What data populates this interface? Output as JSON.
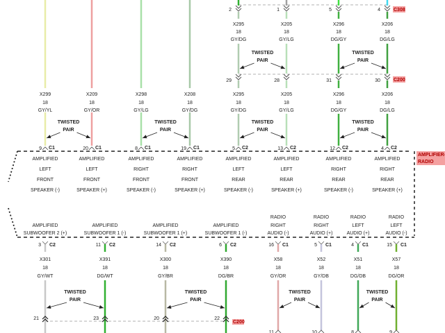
{
  "twisted_pair": [
    "TWISTED",
    "PAIR"
  ],
  "module_label": [
    "AMPLIFIER-",
    "RADIO"
  ],
  "module_label_bg": "#f4a0a0",
  "top_left": {
    "wires": [
      {
        "circuit": "X299",
        "gauge": "18",
        "color_code": "GY/YL",
        "pin": "9",
        "connector": "C1",
        "function": [
          "AMPLIFIED",
          "LEFT",
          "FRONT",
          "SPEAKER (-)"
        ],
        "color": "#e8eca8"
      },
      {
        "circuit": "X209",
        "gauge": "18",
        "color_code": "GY/OR",
        "pin": "20",
        "connector": "C1",
        "function": [
          "AMPLIFIED",
          "LEFT",
          "FRONT",
          "SPEAKER (+)"
        ],
        "color": "#eea0a0"
      },
      {
        "circuit": "X298",
        "gauge": "18",
        "color_code": "GY/LG",
        "pin": "8",
        "connector": "C1",
        "function": [
          "AMPLIFIED",
          "RIGHT",
          "FRONT",
          "SPEAKER (-)"
        ],
        "color": "#a8e0a8"
      },
      {
        "circuit": "X208",
        "gauge": "18",
        "color_code": "GY/DG",
        "pin": "19",
        "connector": "C1",
        "function": [
          "AMPLIFIED",
          "RIGHT",
          "FRONT",
          "SPEAKER (+)"
        ],
        "color": "#a8c8a8"
      }
    ]
  },
  "top_right": {
    "connector_top": "C308",
    "connector_mid": "C200",
    "wires": [
      {
        "pin_top": "2",
        "pin_mid": "29",
        "circuit": "X295",
        "gauge": "18",
        "color_code": "GY/DG",
        "pin": "5",
        "connector": "C2",
        "function": [
          "AMPLIFIED",
          "LEFT",
          "REAR",
          "SPEAKER (-)"
        ],
        "color": "#b0ccb0",
        "top_color": "#30b030"
      },
      {
        "pin_top": "1",
        "pin_mid": "28",
        "circuit": "X205",
        "gauge": "18",
        "color_code": "GY/LG",
        "pin": "13",
        "connector": "C2",
        "function": [
          "AMPLIFIED",
          "LEFT",
          "REAR",
          "SPEAKER (+)"
        ],
        "color": "#b8e0b8",
        "top_color": "#a0a0a0"
      },
      {
        "pin_top": "5",
        "pin_mid": "31",
        "circuit": "X296",
        "gauge": "18",
        "color_code": "DG/GY",
        "pin": "12",
        "connector": "C2",
        "function": [
          "AMPLIFIED",
          "RIGHT",
          "REAR",
          "SPEAKER (-)"
        ],
        "color": "#40b040",
        "top_color": "#40e040"
      },
      {
        "pin_top": "4",
        "pin_mid": "30",
        "circuit": "X206",
        "gauge": "18",
        "color_code": "DG/LG",
        "pin": "4",
        "connector": "C2",
        "function": [
          "AMPLIFIED",
          "RIGHT",
          "REAR",
          "SPEAKER (+)"
        ],
        "color": "#40a040",
        "top_color": "#40d8f0"
      }
    ]
  },
  "bottom_left": {
    "connector": "C200",
    "wires": [
      {
        "function": [
          "AMPLIFIED",
          "SUBWOOFER 2 (+)"
        ],
        "pin": "3",
        "connector": "C2",
        "circuit": "X301",
        "gauge": "18",
        "color_code": "GY/WT",
        "pin_bottom": "21",
        "color": "#c8c8c8"
      },
      {
        "function": [
          "AMPLIFIED",
          "SUBWOOFER 1 (-)"
        ],
        "pin": "11",
        "connector": "C2",
        "circuit": "X391",
        "gauge": "18",
        "color_code": "DG/WT",
        "pin_bottom": "23",
        "color": "#30b030"
      },
      {
        "function": [
          "AMPLIFIED",
          "SUBWOOFER 1 (+)"
        ],
        "pin": "14",
        "connector": "C2",
        "circuit": "X300",
        "gauge": "18",
        "color_code": "GY/BR",
        "pin_bottom": "20",
        "color": "#b8b8a4"
      },
      {
        "function": [
          "AMPLIFIED",
          "SUBWOOFER 1 (-)"
        ],
        "pin": "6",
        "connector": "C2",
        "circuit": "X390",
        "gauge": "18",
        "color_code": "DG/BR",
        "pin_bottom": "22",
        "color": "#30a830"
      }
    ]
  },
  "bottom_right": {
    "wires": [
      {
        "function": [
          "RADIO",
          "RIGHT",
          "AUDIO (-)"
        ],
        "pin": "16",
        "connector": "C1",
        "circuit": "X58",
        "gauge": "18",
        "color_code": "GY/OR",
        "pin_bottom": "11",
        "color": "#e0a8a8"
      },
      {
        "function": [
          "RADIO",
          "RIGHT",
          "AUDIO (+)"
        ],
        "pin": "5",
        "connector": "C1",
        "circuit": "X52",
        "gauge": "18",
        "color_code": "GY/DB",
        "pin_bottom": "10",
        "color": "#c4c4dc"
      },
      {
        "function": [
          "RADIO",
          "LEFT",
          "AUDIO (+)"
        ],
        "pin": "4",
        "connector": "C1",
        "circuit": "X51",
        "gauge": "18",
        "color_code": "DG/DB",
        "pin_bottom": "8",
        "color": "#40a858"
      },
      {
        "function": [
          "RADIO",
          "LEFT",
          "AUDIO (-)"
        ],
        "pin": "15",
        "connector": "C1",
        "circuit": "X57",
        "gauge": "18",
        "color_code": "DG/OR",
        "pin_bottom": "9",
        "color": "#70b030"
      }
    ]
  }
}
